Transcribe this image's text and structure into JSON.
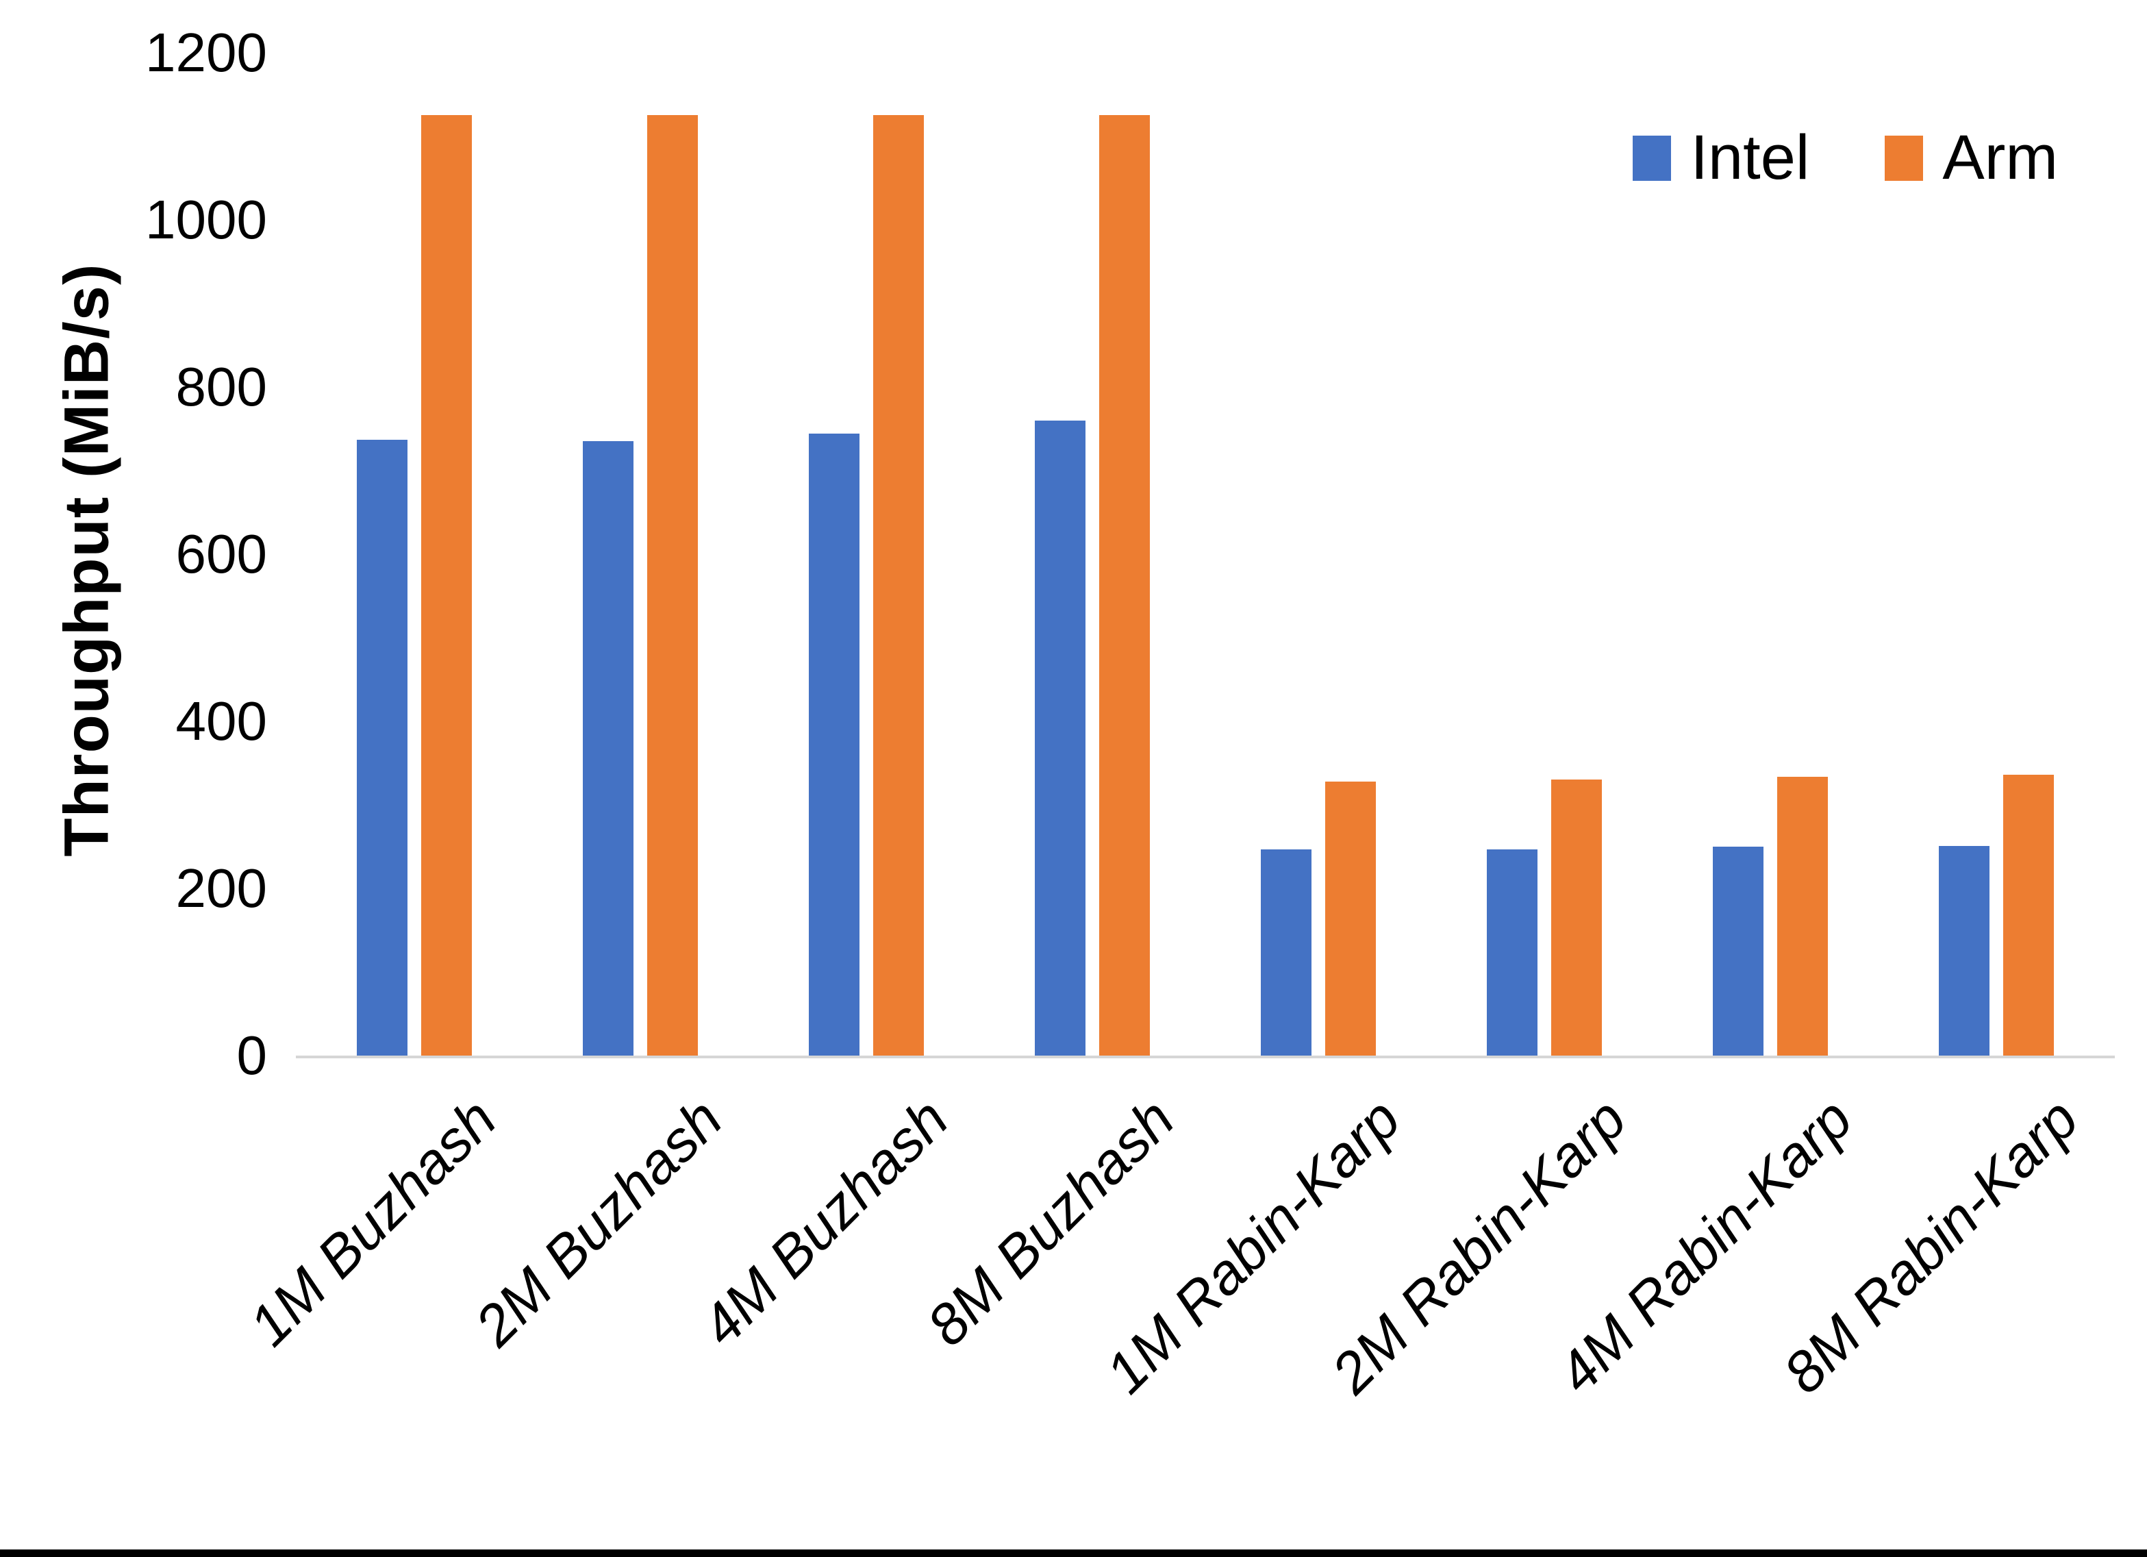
{
  "chart_data": {
    "type": "bar",
    "title": "",
    "xlabel": "",
    "ylabel": "Throughput (MiB/s)",
    "ylim": [
      0,
      1200
    ],
    "ytick_step": 200,
    "grid": false,
    "legend_position": "top-right",
    "categories": [
      "1M Buzhash",
      "2M Buzhash",
      "4M Buzhash",
      "8M Buzhash",
      "1M Rabin-Karp",
      "2M Rabin-Karp",
      "4M Rabin-Karp",
      "8M Rabin-Karp"
    ],
    "series": [
      {
        "name": "Intel",
        "color": "#4472C4",
        "values": [
          737,
          735,
          744,
          760,
          247,
          247,
          250,
          251
        ]
      },
      {
        "name": "Arm",
        "color": "#ED7D31",
        "values": [
          1125,
          1125,
          1125,
          1125,
          328,
          330,
          334,
          336
        ]
      }
    ]
  }
}
